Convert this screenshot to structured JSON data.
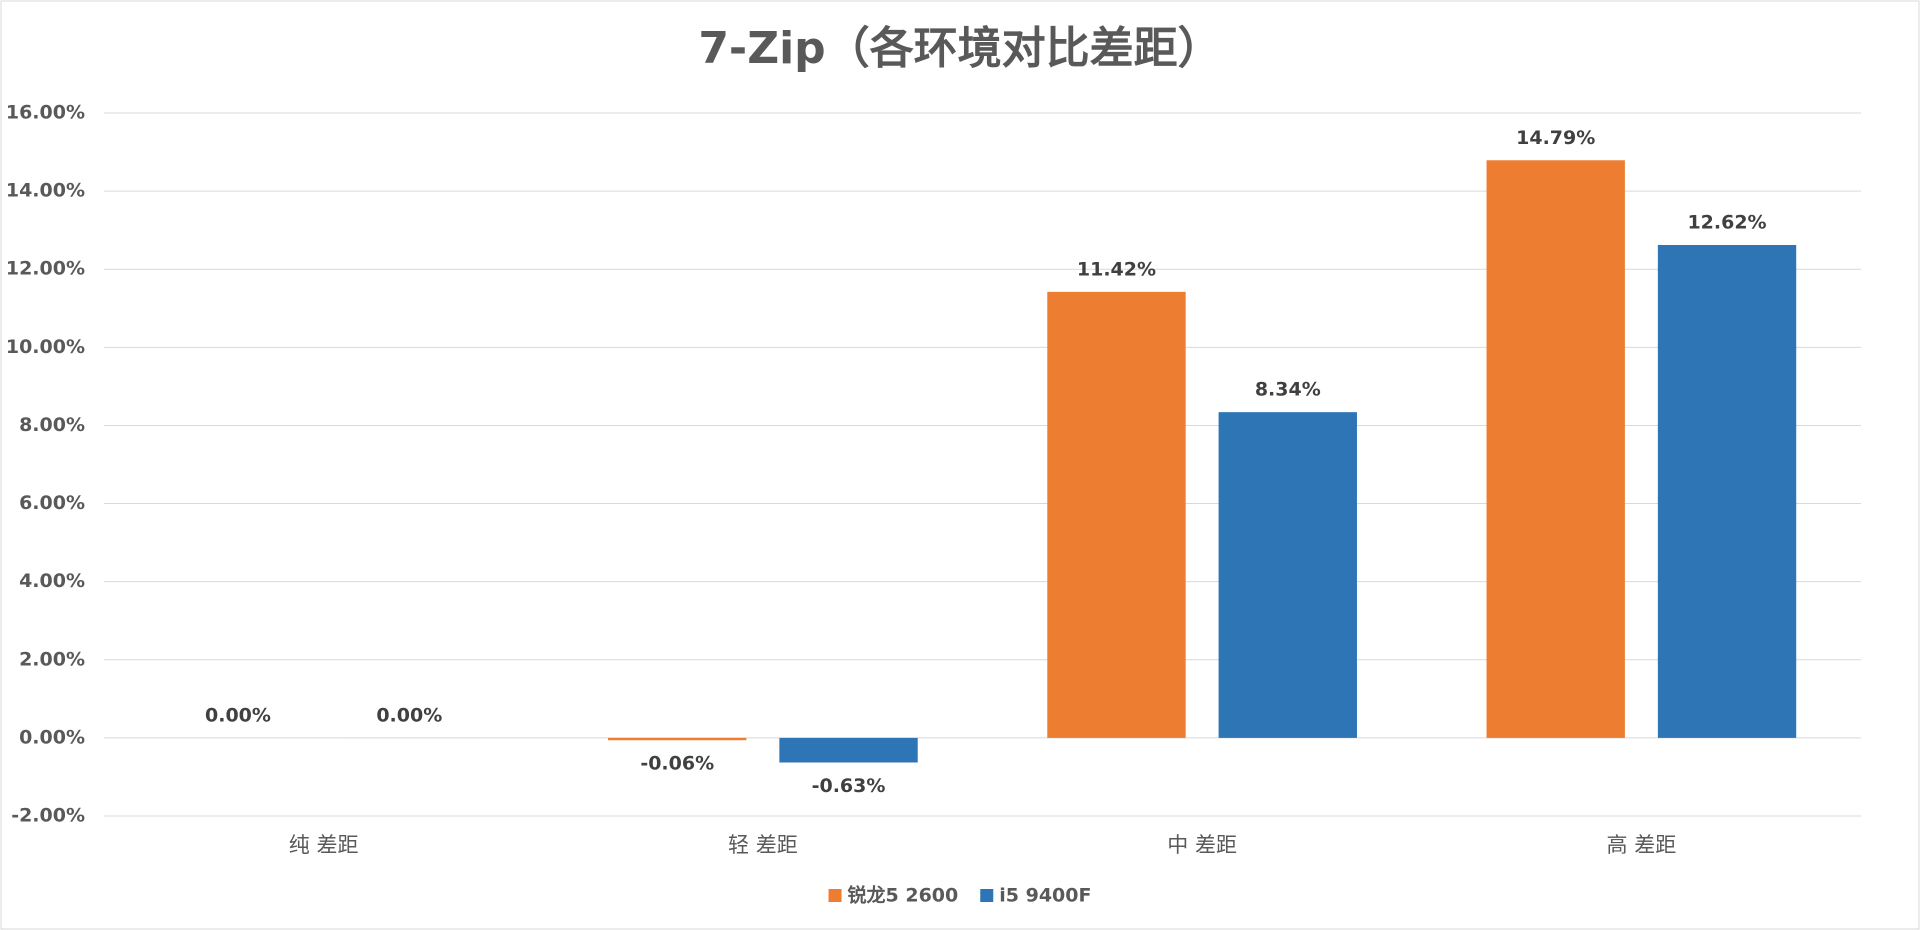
{
  "chart_data": {
    "type": "bar",
    "title": "7-Zip（各环境对比差距）",
    "categories": [
      "纯 差距",
      "轻 差距",
      "中 差距",
      "高 差距"
    ],
    "series": [
      {
        "name": "锐龙5 2600",
        "color": "#ed7d31",
        "values": [
          0,
          -0.06,
          11.42,
          14.79
        ],
        "value_labels": [
          "0.00%",
          "-0.06%",
          "11.42%",
          "14.79%"
        ]
      },
      {
        "name": "i5 9400F",
        "color": "#2e75b6",
        "values": [
          0,
          -0.63,
          8.34,
          12.62
        ],
        "value_labels": [
          "0.00%",
          "-0.63%",
          "8.34%",
          "12.62%"
        ]
      }
    ],
    "ylim": [
      -2,
      16
    ],
    "yticks": [
      {
        "value": -2,
        "label": "-2.00%"
      },
      {
        "value": 0,
        "label": "0.00%"
      },
      {
        "value": 2,
        "label": "2.00%"
      },
      {
        "value": 4,
        "label": "4.00%"
      },
      {
        "value": 6,
        "label": "6.00%"
      },
      {
        "value": 8,
        "label": "8.00%"
      },
      {
        "value": 10,
        "label": "10.00%"
      },
      {
        "value": 12,
        "label": "12.00%"
      },
      {
        "value": 14,
        "label": "14.00%"
      },
      {
        "value": 16,
        "label": "16.00%"
      }
    ],
    "grid": true,
    "legend": "bottom"
  }
}
